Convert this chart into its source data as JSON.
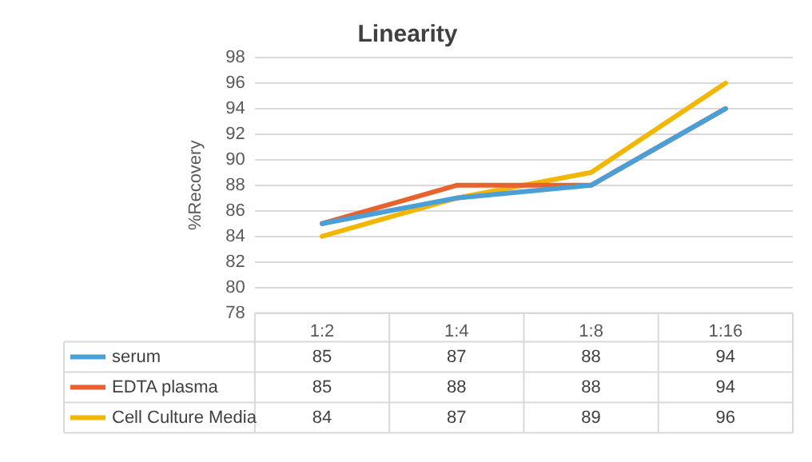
{
  "chart_data": {
    "type": "line",
    "title": "Linearity",
    "ylabel": "%Recovery",
    "categories": [
      "1:2",
      "1:4",
      "1:8",
      "1:16"
    ],
    "series": [
      {
        "name": "serum",
        "color": "#4a9fd6",
        "values": [
          85,
          87,
          88,
          94
        ]
      },
      {
        "name": "EDTA plasma",
        "color": "#e8622e",
        "values": [
          85,
          88,
          88,
          94
        ]
      },
      {
        "name": "Cell Culture Media",
        "color": "#f2b705",
        "values": [
          84,
          87,
          89,
          96
        ]
      }
    ],
    "ylim": [
      78,
      98
    ],
    "yticks": [
      78,
      80,
      82,
      84,
      86,
      88,
      90,
      92,
      94,
      96,
      98
    ],
    "grid": "y",
    "legend": "bottom",
    "data_labels": true,
    "marker": "none",
    "line_style": "solid"
  }
}
